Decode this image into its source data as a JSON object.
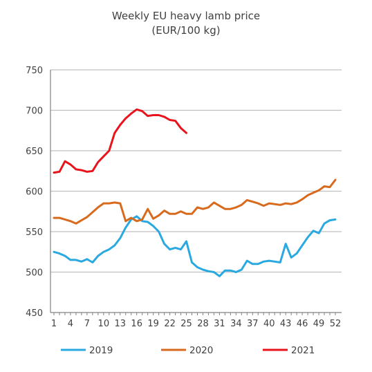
{
  "chart_data": {
    "type": "line",
    "title": "Weekly EU heavy lamb price",
    "subtitle": "(EUR/100 kg)",
    "xlabel": "",
    "ylabel": "",
    "ylim": [
      450,
      750
    ],
    "yticks": [
      450,
      500,
      550,
      600,
      650,
      700,
      750
    ],
    "xlim": [
      1,
      52
    ],
    "xticks": [
      1,
      4,
      7,
      10,
      13,
      16,
      19,
      22,
      25,
      28,
      31,
      34,
      37,
      40,
      43,
      46,
      49,
      52
    ],
    "grid": true,
    "legend_position": "bottom",
    "series": [
      {
        "name": "2019",
        "color": "#29a9e0",
        "x": [
          1,
          2,
          3,
          4,
          5,
          6,
          7,
          8,
          9,
          10,
          11,
          12,
          13,
          14,
          15,
          16,
          17,
          18,
          19,
          20,
          21,
          22,
          23,
          24,
          25,
          26,
          27,
          28,
          29,
          30,
          31,
          32,
          33,
          34,
          35,
          36,
          37,
          38,
          39,
          40,
          41,
          42,
          43,
          44,
          45,
          46,
          47,
          48,
          49,
          50,
          51,
          52
        ],
        "values": [
          525,
          523,
          520,
          515,
          515,
          513,
          516,
          512,
          520,
          525,
          528,
          533,
          542,
          555,
          565,
          569,
          563,
          562,
          557,
          550,
          535,
          528,
          530,
          528,
          538,
          512,
          506,
          503,
          501,
          500,
          495,
          502,
          502,
          500,
          503,
          514,
          510,
          510,
          513,
          514,
          513,
          512,
          535,
          518,
          523,
          533,
          543,
          551,
          548,
          560,
          564,
          565
        ]
      },
      {
        "name": "2020",
        "color": "#d86a1e",
        "x": [
          1,
          2,
          3,
          4,
          5,
          6,
          7,
          8,
          9,
          10,
          11,
          12,
          13,
          14,
          15,
          16,
          17,
          18,
          19,
          20,
          21,
          22,
          23,
          24,
          25,
          26,
          27,
          28,
          29,
          30,
          31,
          32,
          33,
          34,
          35,
          36,
          37,
          38,
          39,
          40,
          41,
          42,
          43,
          44,
          45,
          46,
          47,
          48,
          49,
          50,
          51,
          52
        ],
        "values": [
          567,
          567,
          565,
          563,
          560,
          564,
          568,
          574,
          580,
          585,
          585,
          586,
          585,
          563,
          567,
          563,
          565,
          578,
          566,
          570,
          576,
          572,
          572,
          575,
          572,
          572,
          580,
          578,
          580,
          586,
          582,
          578,
          578,
          580,
          583,
          589,
          587,
          585,
          582,
          585,
          584,
          583,
          585,
          584,
          586,
          590,
          595,
          598,
          601,
          606,
          605,
          614
        ]
      },
      {
        "name": "2021",
        "color": "#e8131b",
        "x": [
          1,
          2,
          3,
          4,
          5,
          6,
          7,
          8,
          9,
          10,
          11,
          12,
          13,
          14,
          15,
          16,
          17,
          18,
          19,
          20,
          21,
          22,
          23,
          24,
          25
        ],
        "values": [
          623,
          624,
          637,
          633,
          627,
          626,
          624,
          625,
          636,
          643,
          650,
          672,
          682,
          690,
          696,
          701,
          699,
          693,
          694,
          694,
          692,
          688,
          687,
          678,
          672
        ]
      }
    ]
  }
}
